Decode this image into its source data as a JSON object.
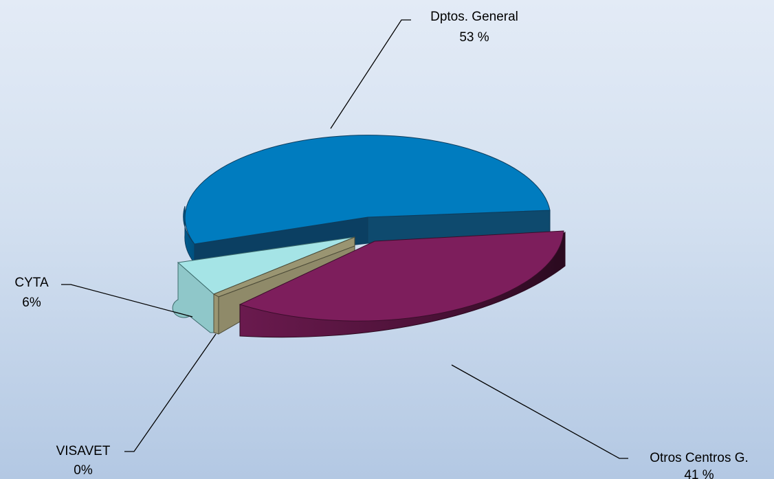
{
  "chart_data": {
    "type": "pie",
    "style": "3d-exploded",
    "slices": [
      {
        "label": "Dptos. General",
        "value_text": "53 %",
        "value": 53,
        "color": "#007cbf"
      },
      {
        "label": "Otros Centros G.",
        "value_text": "41 %",
        "value": 41,
        "color": "#7d1e5c"
      },
      {
        "label": "VISAVET",
        "value_text": "0%",
        "value": 0,
        "color": "#9a9572"
      },
      {
        "label": "CYTA",
        "value_text": "6%",
        "value": 6,
        "color": "#a5e4e6"
      }
    ],
    "background_colors": [
      "#e3ebf6",
      "#b3c8e3"
    ],
    "leader_line_color": "#000000"
  }
}
